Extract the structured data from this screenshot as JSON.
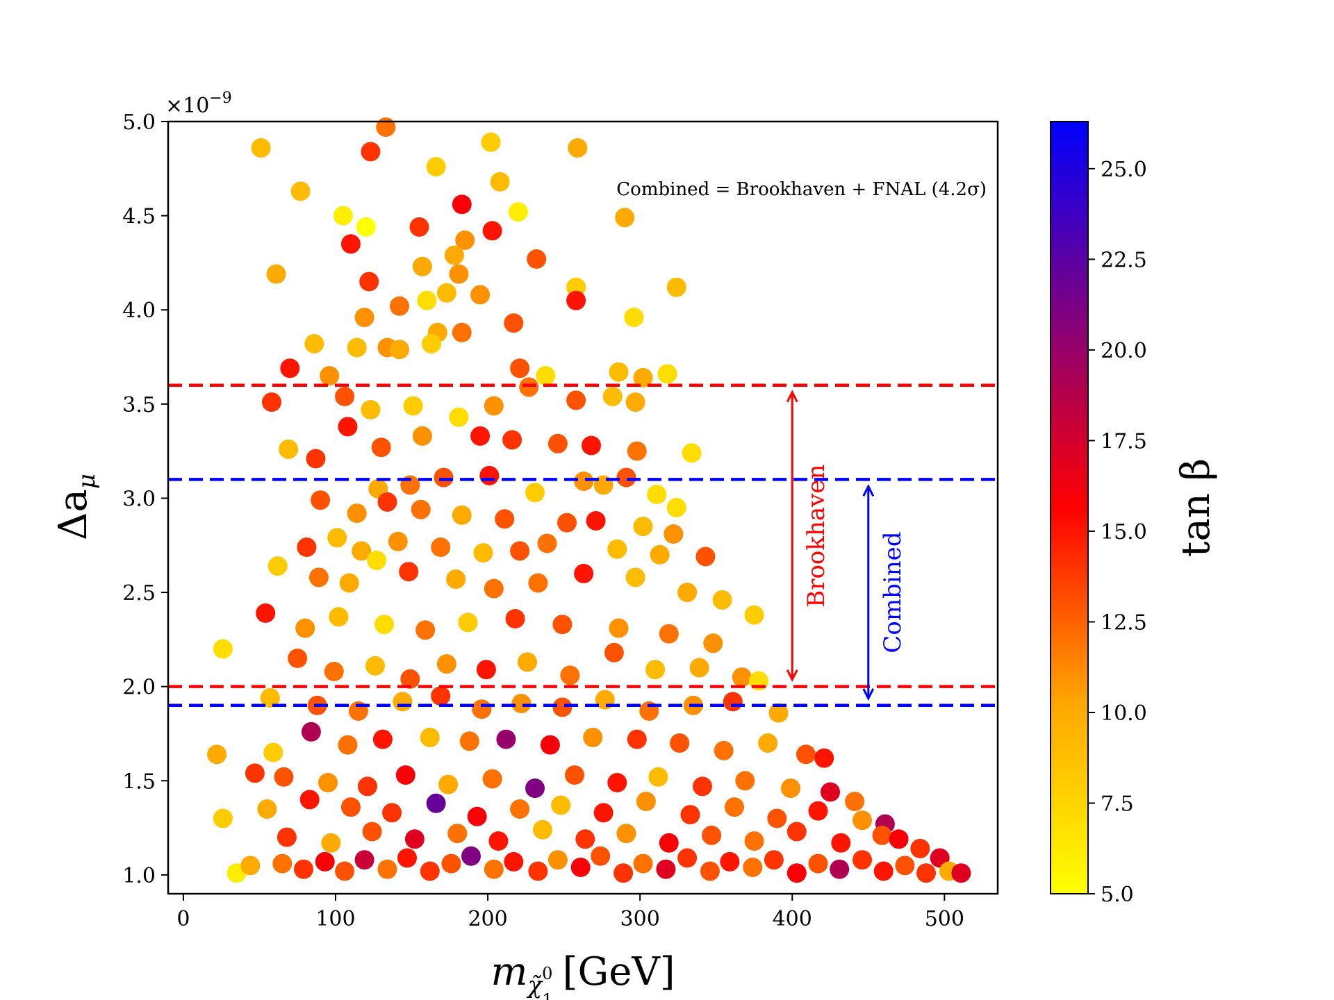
{
  "chart_data": {
    "type": "scatter",
    "x_label_base": "m",
    "x_label_sub": "χ̃",
    "x_label_sub_super": "0",
    "x_label_sub_index": "1",
    "x_label_unit": "[GeV]",
    "y_label": "Δa",
    "y_label_sub": "μ",
    "y_multiplier_base": "×10",
    "y_multiplier_exp": "−9",
    "xlim": [
      -10,
      535
    ],
    "ylim": [
      0.9,
      5.0
    ],
    "x_ticks": [
      0,
      100,
      200,
      300,
      400,
      500
    ],
    "y_ticks": [
      1.0,
      1.5,
      2.0,
      2.5,
      3.0,
      3.5,
      4.0,
      4.5,
      5.0
    ],
    "colorbar": {
      "label": "tan β",
      "range": [
        5.0,
        26.3
      ],
      "ticks": [
        5.0,
        7.5,
        10.0,
        12.5,
        15.0,
        17.5,
        20.0,
        22.5,
        25.0
      ],
      "colormap": [
        "#ffff00",
        "#ffa500",
        "#ff0000",
        "#800080",
        "#0000ff"
      ]
    },
    "hlines": [
      {
        "y": 3.6,
        "color": "#ff0000",
        "style": "dashed"
      },
      {
        "y": 2.0,
        "color": "#ff0000",
        "style": "dashed"
      },
      {
        "y": 3.1,
        "color": "#0000ff",
        "style": "dashed"
      },
      {
        "y": 1.9,
        "color": "#0000ff",
        "style": "dashed"
      }
    ],
    "arrows": [
      {
        "x": 400,
        "y_from": 2.0,
        "y_to": 3.6,
        "color": "#ff0000",
        "label": "Brookhaven"
      },
      {
        "x": 450,
        "y_from": 1.9,
        "y_to": 3.1,
        "color": "#0000ff",
        "label": "Combined"
      }
    ],
    "annotation": "Combined = Brookhaven + FNAL (4.2σ)",
    "points": [
      [
        51,
        4.86,
        9
      ],
      [
        133,
        4.97,
        12
      ],
      [
        123,
        4.84,
        14
      ],
      [
        202,
        4.89,
        8
      ],
      [
        259,
        4.86,
        10
      ],
      [
        77,
        4.63,
        9
      ],
      [
        166,
        4.76,
        8
      ],
      [
        208,
        4.68,
        9
      ],
      [
        105,
        4.5,
        6
      ],
      [
        120,
        4.44,
        5
      ],
      [
        155,
        4.44,
        14
      ],
      [
        183,
        4.56,
        16
      ],
      [
        203,
        4.42,
        15
      ],
      [
        220,
        4.52,
        6
      ],
      [
        290,
        4.49,
        10
      ],
      [
        110,
        4.35,
        15
      ],
      [
        185,
        4.37,
        11
      ],
      [
        232,
        4.27,
        13
      ],
      [
        61,
        4.19,
        10
      ],
      [
        122,
        4.15,
        14
      ],
      [
        157,
        4.23,
        10
      ],
      [
        178,
        4.29,
        10
      ],
      [
        181,
        4.19,
        11
      ],
      [
        258,
        4.12,
        8
      ],
      [
        324,
        4.12,
        9
      ],
      [
        142,
        4.02,
        12
      ],
      [
        160,
        4.05,
        7
      ],
      [
        173,
        4.09,
        9
      ],
      [
        195,
        4.08,
        11
      ],
      [
        258,
        4.05,
        15
      ],
      [
        119,
        3.96,
        11
      ],
      [
        167,
        3.88,
        10
      ],
      [
        183,
        3.88,
        12
      ],
      [
        217,
        3.93,
        13
      ],
      [
        296,
        3.96,
        7
      ],
      [
        86,
        3.82,
        9
      ],
      [
        114,
        3.8,
        9
      ],
      [
        134,
        3.8,
        11
      ],
      [
        163,
        3.82,
        8
      ],
      [
        142,
        3.79,
        10
      ],
      [
        70,
        3.69,
        15
      ],
      [
        96,
        3.65,
        11
      ],
      [
        221,
        3.69,
        13
      ],
      [
        238,
        3.65,
        7
      ],
      [
        286,
        3.67,
        9
      ],
      [
        302,
        3.64,
        10
      ],
      [
        318,
        3.66,
        7
      ],
      [
        58,
        3.51,
        14
      ],
      [
        106,
        3.54,
        13
      ],
      [
        123,
        3.47,
        9
      ],
      [
        151,
        3.49,
        8
      ],
      [
        181,
        3.43,
        7
      ],
      [
        204,
        3.49,
        11
      ],
      [
        227,
        3.59,
        12
      ],
      [
        258,
        3.52,
        13
      ],
      [
        282,
        3.54,
        9
      ],
      [
        297,
        3.51,
        10
      ],
      [
        69,
        3.26,
        9
      ],
      [
        87,
        3.21,
        14
      ],
      [
        108,
        3.38,
        15
      ],
      [
        130,
        3.27,
        13
      ],
      [
        157,
        3.33,
        11
      ],
      [
        195,
        3.33,
        15
      ],
      [
        216,
        3.31,
        14
      ],
      [
        246,
        3.29,
        13
      ],
      [
        268,
        3.28,
        15
      ],
      [
        298,
        3.25,
        12
      ],
      [
        334,
        3.24,
        7
      ],
      [
        128,
        3.05,
        10
      ],
      [
        149,
        3.07,
        12
      ],
      [
        171,
        3.11,
        13
      ],
      [
        201,
        3.12,
        15
      ],
      [
        231,
        3.03,
        8
      ],
      [
        263,
        3.09,
        11
      ],
      [
        276,
        3.07,
        10
      ],
      [
        291,
        3.11,
        13
      ],
      [
        311,
        3.02,
        7
      ],
      [
        324,
        2.95,
        7
      ],
      [
        90,
        2.99,
        13
      ],
      [
        114,
        2.92,
        11
      ],
      [
        134,
        2.98,
        14
      ],
      [
        156,
        2.94,
        12
      ],
      [
        183,
        2.91,
        10
      ],
      [
        211,
        2.89,
        13
      ],
      [
        252,
        2.87,
        13
      ],
      [
        271,
        2.88,
        15
      ],
      [
        302,
        2.85,
        9
      ],
      [
        322,
        2.81,
        11
      ],
      [
        81,
        2.74,
        14
      ],
      [
        101,
        2.79,
        9
      ],
      [
        117,
        2.72,
        10
      ],
      [
        141,
        2.77,
        11
      ],
      [
        169,
        2.74,
        12
      ],
      [
        197,
        2.71,
        9
      ],
      [
        221,
        2.72,
        13
      ],
      [
        239,
        2.76,
        12
      ],
      [
        285,
        2.73,
        9
      ],
      [
        313,
        2.7,
        10
      ],
      [
        343,
        2.69,
        13
      ],
      [
        62,
        2.64,
        8
      ],
      [
        89,
        2.58,
        12
      ],
      [
        109,
        2.55,
        10
      ],
      [
        127,
        2.67,
        7
      ],
      [
        148,
        2.61,
        14
      ],
      [
        179,
        2.57,
        10
      ],
      [
        204,
        2.52,
        12
      ],
      [
        233,
        2.55,
        12
      ],
      [
        263,
        2.6,
        15
      ],
      [
        297,
        2.58,
        9
      ],
      [
        331,
        2.5,
        10
      ],
      [
        354,
        2.46,
        9
      ],
      [
        54,
        2.39,
        15
      ],
      [
        80,
        2.31,
        11
      ],
      [
        102,
        2.37,
        9
      ],
      [
        132,
        2.33,
        7
      ],
      [
        159,
        2.3,
        12
      ],
      [
        187,
        2.34,
        8
      ],
      [
        218,
        2.36,
        14
      ],
      [
        249,
        2.33,
        13
      ],
      [
        286,
        2.31,
        11
      ],
      [
        319,
        2.28,
        12
      ],
      [
        348,
        2.23,
        11
      ],
      [
        375,
        2.38,
        8
      ],
      [
        26,
        2.2,
        7
      ],
      [
        75,
        2.15,
        13
      ],
      [
        99,
        2.08,
        12
      ],
      [
        126,
        2.11,
        9
      ],
      [
        149,
        2.04,
        13
      ],
      [
        173,
        2.12,
        11
      ],
      [
        199,
        2.09,
        15
      ],
      [
        226,
        2.13,
        10
      ],
      [
        254,
        2.06,
        12
      ],
      [
        283,
        2.18,
        13
      ],
      [
        310,
        2.09,
        9
      ],
      [
        339,
        2.1,
        10
      ],
      [
        367,
        2.05,
        11
      ],
      [
        378,
        2.03,
        7
      ],
      [
        57,
        1.94,
        9
      ],
      [
        88,
        1.9,
        13
      ],
      [
        115,
        1.87,
        12
      ],
      [
        144,
        1.92,
        10
      ],
      [
        169,
        1.95,
        14
      ],
      [
        196,
        1.88,
        12
      ],
      [
        222,
        1.91,
        11
      ],
      [
        249,
        1.89,
        13
      ],
      [
        277,
        1.93,
        10
      ],
      [
        306,
        1.87,
        12
      ],
      [
        335,
        1.9,
        11
      ],
      [
        361,
        1.92,
        14
      ],
      [
        391,
        1.86,
        10
      ],
      [
        22,
        1.64,
        10
      ],
      [
        47,
        1.54,
        14
      ],
      [
        59,
        1.65,
        8
      ],
      [
        84,
        1.76,
        19
      ],
      [
        108,
        1.69,
        12
      ],
      [
        131,
        1.72,
        15
      ],
      [
        162,
        1.73,
        9
      ],
      [
        188,
        1.71,
        12
      ],
      [
        212,
        1.72,
        20
      ],
      [
        241,
        1.69,
        16
      ],
      [
        269,
        1.73,
        11
      ],
      [
        298,
        1.72,
        14
      ],
      [
        326,
        1.7,
        13
      ],
      [
        355,
        1.66,
        12
      ],
      [
        384,
        1.7,
        10
      ],
      [
        409,
        1.64,
        13
      ],
      [
        421,
        1.62,
        15
      ],
      [
        66,
        1.52,
        13
      ],
      [
        95,
        1.49,
        11
      ],
      [
        121,
        1.47,
        14
      ],
      [
        146,
        1.53,
        16
      ],
      [
        174,
        1.48,
        10
      ],
      [
        203,
        1.51,
        12
      ],
      [
        231,
        1.46,
        21
      ],
      [
        257,
        1.53,
        13
      ],
      [
        285,
        1.49,
        15
      ],
      [
        312,
        1.52,
        9
      ],
      [
        341,
        1.47,
        14
      ],
      [
        369,
        1.5,
        12
      ],
      [
        399,
        1.46,
        11
      ],
      [
        425,
        1.44,
        17
      ],
      [
        441,
        1.39,
        12
      ],
      [
        26,
        1.3,
        8
      ],
      [
        55,
        1.35,
        10
      ],
      [
        83,
        1.4,
        15
      ],
      [
        110,
        1.36,
        13
      ],
      [
        137,
        1.33,
        14
      ],
      [
        166,
        1.38,
        22
      ],
      [
        193,
        1.31,
        16
      ],
      [
        221,
        1.35,
        12
      ],
      [
        248,
        1.37,
        9
      ],
      [
        276,
        1.33,
        15
      ],
      [
        304,
        1.39,
        11
      ],
      [
        333,
        1.32,
        14
      ],
      [
        362,
        1.36,
        12
      ],
      [
        390,
        1.3,
        13
      ],
      [
        417,
        1.34,
        15
      ],
      [
        446,
        1.29,
        11
      ],
      [
        461,
        1.27,
        19
      ],
      [
        68,
        1.2,
        14
      ],
      [
        97,
        1.17,
        10
      ],
      [
        124,
        1.23,
        13
      ],
      [
        152,
        1.19,
        17
      ],
      [
        180,
        1.22,
        12
      ],
      [
        207,
        1.18,
        15
      ],
      [
        236,
        1.24,
        9
      ],
      [
        264,
        1.19,
        14
      ],
      [
        291,
        1.22,
        11
      ],
      [
        319,
        1.17,
        16
      ],
      [
        347,
        1.21,
        13
      ],
      [
        375,
        1.18,
        12
      ],
      [
        403,
        1.23,
        14
      ],
      [
        432,
        1.17,
        15
      ],
      [
        459,
        1.21,
        13
      ],
      [
        470,
        1.19,
        16
      ],
      [
        484,
        1.14,
        14
      ],
      [
        497,
        1.09,
        17
      ],
      [
        35,
        1.01,
        6
      ],
      [
        44,
        1.05,
        10
      ],
      [
        65,
        1.06,
        12
      ],
      [
        79,
        1.03,
        14
      ],
      [
        93,
        1.07,
        16
      ],
      [
        106,
        1.02,
        13
      ],
      [
        119,
        1.08,
        18
      ],
      [
        134,
        1.03,
        12
      ],
      [
        147,
        1.09,
        15
      ],
      [
        162,
        1.02,
        14
      ],
      [
        176,
        1.06,
        13
      ],
      [
        189,
        1.1,
        21
      ],
      [
        204,
        1.03,
        12
      ],
      [
        217,
        1.07,
        15
      ],
      [
        233,
        1.02,
        14
      ],
      [
        246,
        1.08,
        11
      ],
      [
        261,
        1.04,
        16
      ],
      [
        274,
        1.1,
        13
      ],
      [
        289,
        1.01,
        14
      ],
      [
        302,
        1.06,
        12
      ],
      [
        317,
        1.03,
        17
      ],
      [
        331,
        1.09,
        14
      ],
      [
        346,
        1.02,
        13
      ],
      [
        359,
        1.07,
        15
      ],
      [
        374,
        1.04,
        12
      ],
      [
        388,
        1.08,
        14
      ],
      [
        403,
        1.01,
        16
      ],
      [
        417,
        1.06,
        13
      ],
      [
        431,
        1.03,
        19
      ],
      [
        446,
        1.08,
        14
      ],
      [
        460,
        1.02,
        15
      ],
      [
        474,
        1.05,
        13
      ],
      [
        488,
        1.01,
        14
      ],
      [
        503,
        1.02,
        10
      ],
      [
        511,
        1.01,
        17
      ]
    ]
  }
}
